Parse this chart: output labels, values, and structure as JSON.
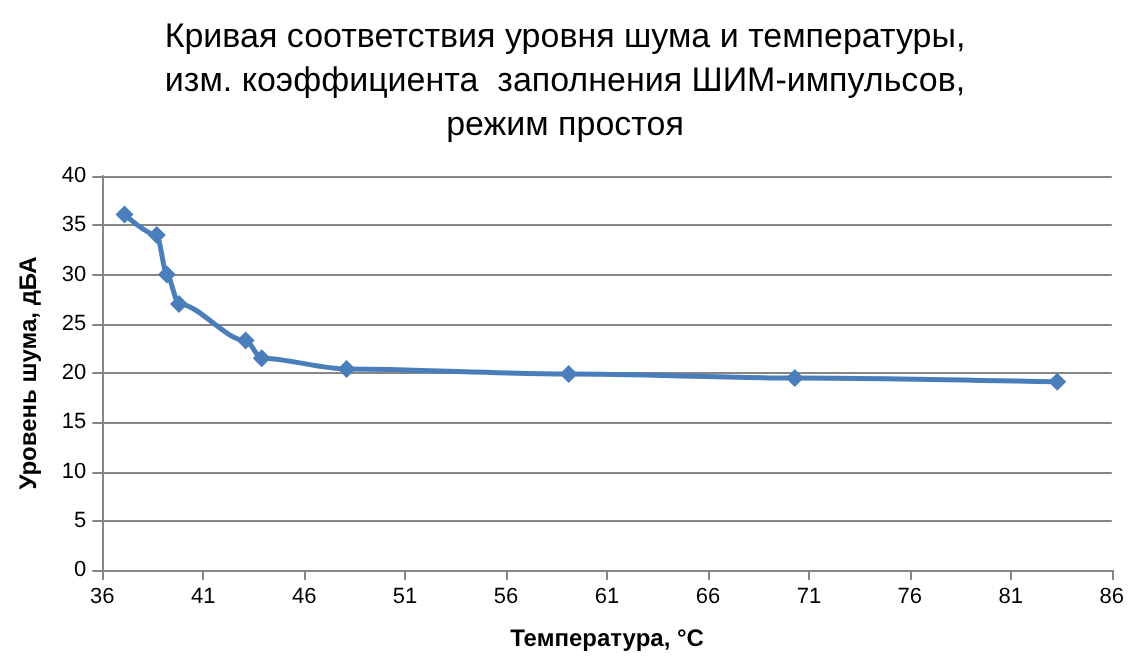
{
  "chart_data": {
    "type": "line",
    "title": "Кривая соответствия уровня шума и температуры,\nизм. коэффициента  заполнения ШИМ-импульсов,\nрежим простоя",
    "xlabel": "Температура, °C",
    "ylabel": "Уровень шума, дБА",
    "x": [
      37.1,
      38.7,
      39.2,
      39.8,
      43.1,
      43.9,
      48.1,
      59.1,
      70.3,
      83.3
    ],
    "series": [
      {
        "color": "#4a7ebb",
        "values": [
          36.1,
          34,
          30,
          27,
          23.3,
          21.5,
          20.4,
          19.9,
          19.5,
          19.1
        ]
      }
    ],
    "xlim": [
      36,
      86
    ],
    "xticks": [
      36,
      41,
      46,
      51,
      56,
      61,
      66,
      71,
      76,
      81,
      86
    ],
    "ylim": [
      0,
      40
    ],
    "yticks": [
      0,
      5,
      10,
      15,
      20,
      25,
      30,
      35,
      40
    ],
    "grid": "y",
    "marker": "diamond",
    "line_style": "solid"
  }
}
